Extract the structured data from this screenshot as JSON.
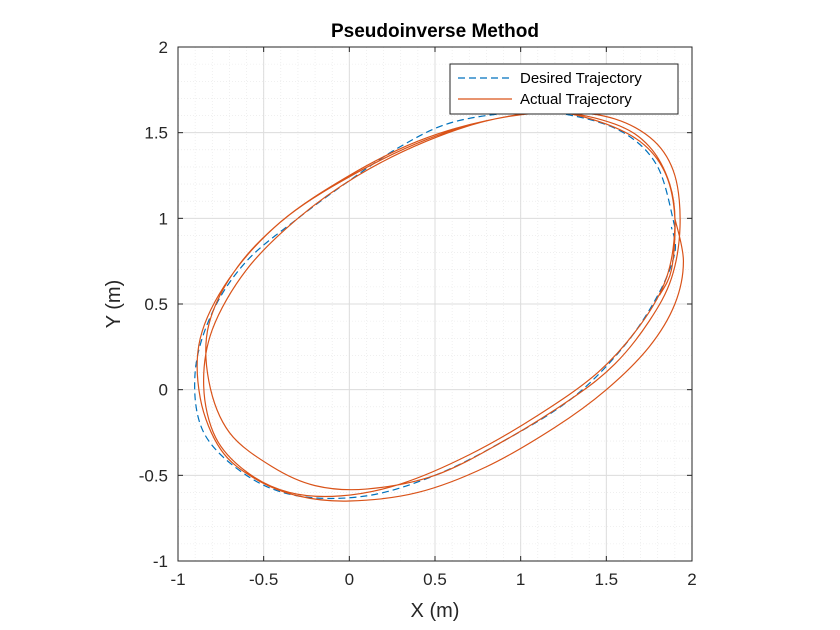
{
  "chart_data": {
    "type": "line",
    "title": "Pseudoinverse Method",
    "xlabel": "X (m)",
    "ylabel": "Y (m)",
    "xlim": [
      -1,
      2
    ],
    "ylim": [
      -1,
      2
    ],
    "x_ticks": [
      "-1",
      "-0.5",
      "0",
      "0.5",
      "1",
      "1.5",
      "2"
    ],
    "y_ticks": [
      "2",
      "1.5",
      "1",
      "0.5",
      "0",
      "-0.5",
      "-1"
    ],
    "grid": true,
    "minor_grid": true,
    "legend_position": "top-right",
    "series": [
      {
        "name": "Desired Trajectory",
        "style": "dashed",
        "color": "#0072BD",
        "x": [
          1.9,
          1.8,
          1.6,
          1.3,
          1.0,
          0.6,
          0.3,
          0.0,
          -0.3,
          -0.6,
          -0.8,
          -0.9,
          -0.85,
          -0.6,
          -0.3,
          0.1,
          0.5,
          0.9,
          1.3,
          1.6,
          1.8,
          1.9,
          1.88
        ],
        "y": [
          0.95,
          1.3,
          1.5,
          1.6,
          1.62,
          1.56,
          1.42,
          1.22,
          1.0,
          0.75,
          0.45,
          0.1,
          -0.25,
          -0.5,
          -0.62,
          -0.62,
          -0.5,
          -0.3,
          -0.05,
          0.25,
          0.55,
          0.8,
          0.95
        ]
      },
      {
        "name": "Actual Trajectory",
        "style": "solid",
        "color": "#D95319",
        "x": [
          1.9,
          1.95,
          1.9,
          1.75,
          1.5,
          1.2,
          0.8,
          0.4,
          0.0,
          -0.3,
          -0.55,
          -0.75,
          -0.87,
          -0.87,
          -0.7,
          -0.4,
          0.0,
          0.4,
          0.8,
          1.2,
          1.55,
          1.75,
          1.87,
          1.9,
          1.85,
          1.7,
          1.45,
          1.1,
          0.7,
          0.3,
          -0.05,
          -0.35,
          -0.6,
          -0.78,
          -0.85,
          -0.8,
          -0.6,
          -0.3,
          0.05,
          0.45,
          0.85,
          1.25,
          1.55,
          1.78,
          1.9,
          1.93,
          1.88,
          1.75,
          1.55,
          1.3,
          0.9,
          0.5,
          0.1,
          -0.2,
          -0.45,
          -0.7,
          -0.82,
          -0.82,
          -0.65,
          -0.35,
          0.05,
          0.45,
          0.85,
          1.2,
          1.5,
          1.72,
          1.85,
          1.9,
          1.88,
          1.81
        ],
        "y": [
          1.0,
          0.75,
          0.5,
          0.25,
          0.0,
          -0.22,
          -0.45,
          -0.6,
          -0.65,
          -0.62,
          -0.52,
          -0.35,
          -0.05,
          0.3,
          0.65,
          0.98,
          1.25,
          1.45,
          1.57,
          1.62,
          1.55,
          1.42,
          1.2,
          0.95,
          0.65,
          0.38,
          0.1,
          -0.15,
          -0.38,
          -0.55,
          -0.62,
          -0.6,
          -0.48,
          -0.28,
          0.02,
          0.35,
          0.7,
          1.0,
          1.25,
          1.45,
          1.58,
          1.62,
          1.58,
          1.45,
          1.25,
          0.95,
          0.65,
          0.4,
          0.15,
          -0.05,
          -0.3,
          -0.5,
          -0.58,
          -0.56,
          -0.45,
          -0.25,
          0.05,
          0.38,
          0.72,
          1.02,
          1.27,
          1.46,
          1.58,
          1.62,
          1.55,
          1.43,
          1.25,
          1.0,
          0.7,
          0.55
        ]
      }
    ]
  }
}
